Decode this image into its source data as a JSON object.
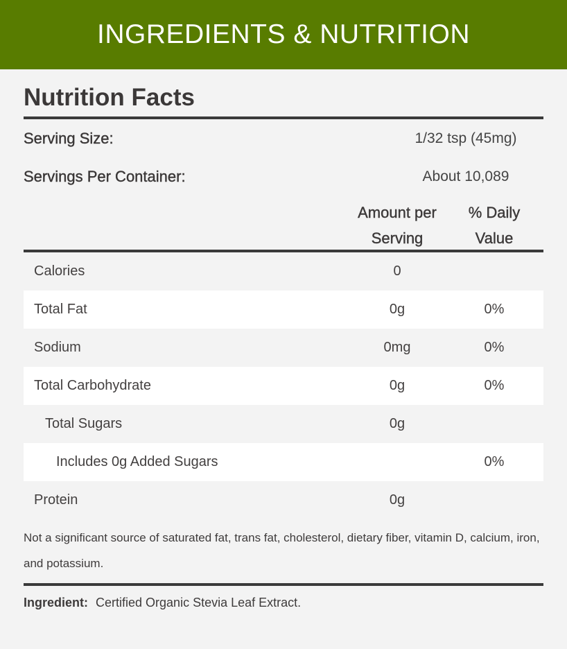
{
  "banner": {
    "title": "INGREDIENTS & NUTRITION",
    "color": "#587c00"
  },
  "nutrition": {
    "title": "Nutrition Facts",
    "serving_size": {
      "label": "Serving Size:",
      "value": "1/32 tsp (45mg)"
    },
    "servings_per_container": {
      "label": "Servings Per Container:",
      "value": "About 10,089"
    },
    "columns": {
      "amount_line1": "Amount per",
      "amount_line2": "Serving",
      "daily_line1": "% Daily",
      "daily_line2": "Value"
    },
    "rows": [
      {
        "name": "Calories",
        "amount": "0",
        "daily_value": ""
      },
      {
        "name": "Total Fat",
        "amount": "0g",
        "daily_value": "0%"
      },
      {
        "name": "Sodium",
        "amount": "0mg",
        "daily_value": "0%"
      },
      {
        "name": "Total Carbohydrate",
        "amount": "0g",
        "daily_value": "0%"
      },
      {
        "name": "Total Sugars",
        "amount": "0g",
        "daily_value": ""
      },
      {
        "name": "Includes 0g Added Sugars",
        "amount": "",
        "daily_value": "0%"
      },
      {
        "name": "Protein",
        "amount": "0g",
        "daily_value": ""
      }
    ],
    "footnote": "Not a significant source of saturated fat, trans fat, cholesterol, dietary fiber, vitamin D, calcium, iron, and potassium.",
    "ingredient": {
      "label": "Ingredient:",
      "value": "Certified Organic Stevia Leaf Extract."
    }
  }
}
